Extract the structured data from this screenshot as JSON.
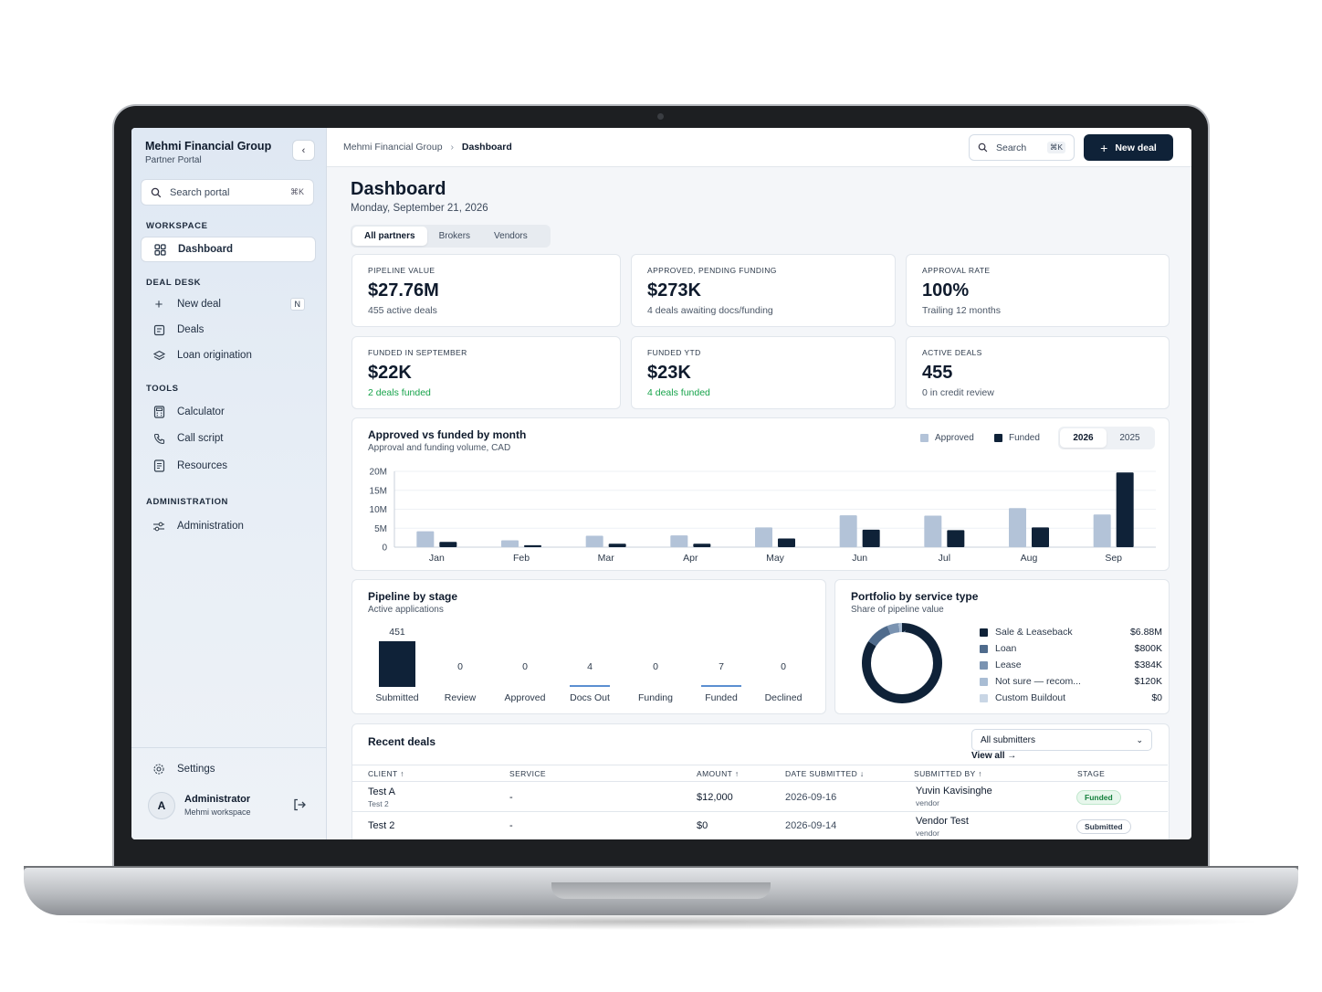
{
  "sidebar": {
    "brand": "Mehmi Financial Group",
    "brand_sub": "Partner Portal",
    "collapse": "‹",
    "search_placeholder": "Search portal",
    "search_kbd": "⌘K",
    "sections": {
      "workspace": "WORKSPACE",
      "deal_desk": "DEAL DESK",
      "tools": "TOOLS",
      "administration": "ADMINISTRATION"
    },
    "items": {
      "dashboard": "Dashboard",
      "new_deal": "New deal",
      "new_deal_shortcut": "N",
      "deals": "Deals",
      "loan_origination": "Loan origination",
      "calculator": "Calculator",
      "call_script": "Call script",
      "resources": "Resources",
      "administration": "Administration",
      "settings": "Settings"
    },
    "user": {
      "initial": "A",
      "name": "Administrator",
      "workspace": "Mehmi workspace"
    }
  },
  "topbar": {
    "crumb_root": "Mehmi Financial Group",
    "crumb_sep": "›",
    "crumb_current": "Dashboard",
    "search_label": "Search",
    "search_kbd": "⌘K",
    "new_deal_label": "New deal"
  },
  "page": {
    "title": "Dashboard",
    "date": "Monday, September 21, 2026",
    "tabs": [
      "All partners",
      "Brokers",
      "Vendors"
    ]
  },
  "kpis": [
    {
      "label": "PIPELINE VALUE",
      "value": "$27.76M",
      "sub": "455 active deals"
    },
    {
      "label": "APPROVED, PENDING FUNDING",
      "value": "$273K",
      "sub": "4 deals awaiting docs/funding"
    },
    {
      "label": "APPROVAL RATE",
      "value": "100%",
      "sub": "Trailing 12 months"
    },
    {
      "label": "FUNDED IN SEPTEMBER",
      "value": "$22K",
      "sub": "2 deals funded"
    },
    {
      "label": "FUNDED YTD",
      "value": "$23K",
      "sub": "4 deals funded"
    },
    {
      "label": "ACTIVE DEALS",
      "value": "455",
      "sub": "0 in credit review"
    }
  ],
  "monthly": {
    "title": "Approved vs funded by month",
    "subtitle": "Approval and funding volume, CAD",
    "legend_approved": "Approved",
    "legend_funded": "Funded",
    "years": [
      "2026",
      "2025"
    ],
    "colors": {
      "approved": "#b3c3d8",
      "funded": "#0f2238"
    }
  },
  "pipeline": {
    "title": "Pipeline by stage",
    "subtitle": "Active applications"
  },
  "portfolio": {
    "title": "Portfolio by service type",
    "subtitle": "Share of pipeline value",
    "items": [
      {
        "label": "Sale & Leaseback",
        "value": "$6.88M",
        "color": "#0f2238"
      },
      {
        "label": "Loan",
        "value": "$800K",
        "color": "#4f6b8c"
      },
      {
        "label": "Lease",
        "value": "$384K",
        "color": "#7a93b1"
      },
      {
        "label": "Not sure — recom...",
        "value": "$120K",
        "color": "#a9bdd4"
      },
      {
        "label": "Custom Buildout",
        "value": "$0",
        "color": "#c9d6e5"
      }
    ]
  },
  "recent": {
    "title": "Recent deals",
    "filter": "All submitters",
    "view_all": "View all →",
    "columns": {
      "client": "CLIENT ↑",
      "service": "SERVICE",
      "amount": "AMOUNT ↑",
      "date": "DATE SUBMITTED ↓",
      "submitted_by": "SUBMITTED BY ↑",
      "stage": "STAGE"
    },
    "rows": [
      {
        "client": "Test A",
        "client_sub": "Test 2",
        "service": "-",
        "amount": "$12,000",
        "date": "2026-09-16",
        "by": "Yuvin Kavisinghe",
        "by_sub": "vendor",
        "stage": "Funded"
      },
      {
        "client": "Test 2",
        "service": "-",
        "amount": "$0",
        "date": "2026-09-14",
        "by": "Vendor Test",
        "by_sub": "vendor",
        "stage": "Submitted"
      }
    ]
  },
  "chart_data": [
    {
      "type": "bar",
      "title": "Approved vs funded by month",
      "subtitle": "Approval and funding volume, CAD",
      "categories": [
        "Jan",
        "Feb",
        "Mar",
        "Apr",
        "May",
        "Jun",
        "Jul",
        "Aug",
        "Sep"
      ],
      "series": [
        {
          "name": "Approved",
          "values": [
            4.2,
            1.8,
            3.0,
            3.1,
            5.2,
            8.4,
            8.3,
            10.3,
            8.6
          ]
        },
        {
          "name": "Funded",
          "values": [
            1.4,
            0.5,
            0.9,
            0.9,
            2.3,
            4.6,
            4.5,
            5.2,
            19.7
          ]
        }
      ],
      "yticks": [
        "0",
        "5M",
        "10M",
        "15M",
        "20M"
      ],
      "ylim": [
        0,
        20
      ],
      "grid": true,
      "legend": "top-right"
    },
    {
      "type": "bar",
      "title": "Pipeline by stage",
      "subtitle": "Active applications",
      "categories": [
        "Submitted",
        "Review",
        "Approved",
        "Docs Out",
        "Funding",
        "Funded",
        "Declined"
      ],
      "values": [
        451,
        0,
        0,
        4,
        0,
        7,
        0
      ]
    },
    {
      "type": "pie",
      "title": "Portfolio by service type",
      "subtitle": "Share of pipeline value",
      "labels": [
        "Sale & Leaseback",
        "Loan",
        "Lease",
        "Not sure — recom...",
        "Custom Buildout"
      ],
      "values": [
        6.88,
        0.8,
        0.384,
        0.12,
        0
      ]
    }
  ]
}
